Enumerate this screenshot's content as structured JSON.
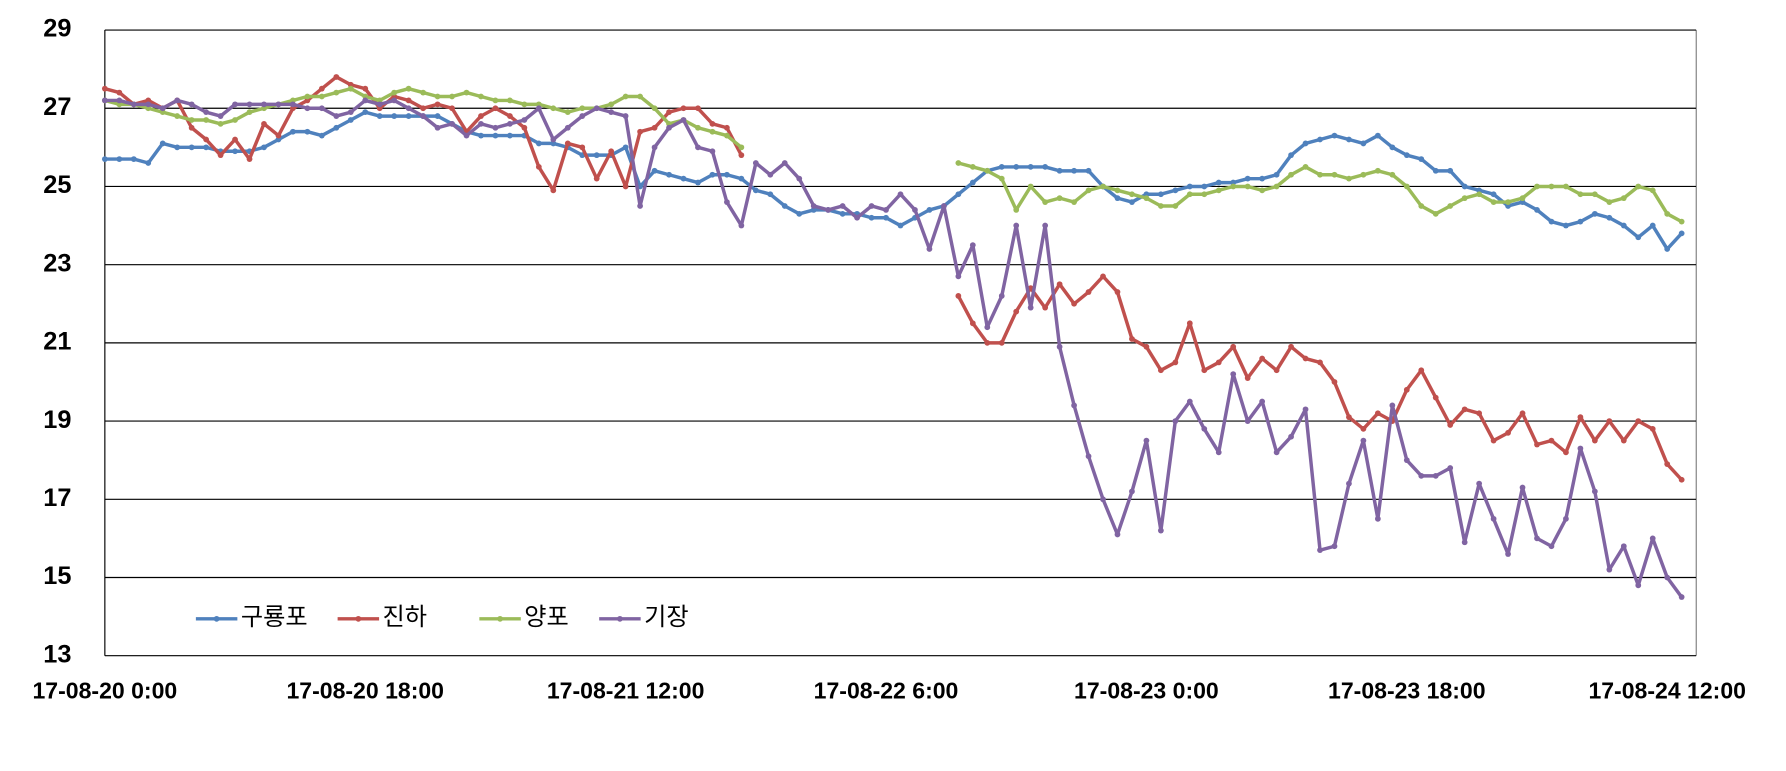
{
  "chart_data": {
    "type": "line",
    "categories": [
      "17-08-20 0:00",
      null,
      null,
      null,
      null,
      null,
      null,
      null,
      null,
      null,
      null,
      null,
      null,
      null,
      null,
      null,
      null,
      null,
      "17-08-20 18:00",
      null,
      null,
      null,
      null,
      null,
      null,
      null,
      null,
      null,
      null,
      null,
      null,
      null,
      null,
      null,
      null,
      null,
      "17-08-21 12:00",
      null,
      null,
      null,
      null,
      null,
      null,
      null,
      null,
      null,
      null,
      null,
      null,
      null,
      null,
      null,
      null,
      null,
      "17-08-22 6:00",
      null,
      null,
      null,
      null,
      null,
      null,
      null,
      null,
      null,
      null,
      null,
      null,
      null,
      null,
      null,
      null,
      null,
      "17-08-23 0:00",
      null,
      null,
      null,
      null,
      null,
      null,
      null,
      null,
      null,
      null,
      null,
      null,
      null,
      null,
      null,
      null,
      null,
      "17-08-23 18:00",
      null,
      null,
      null,
      null,
      null,
      null,
      null,
      null,
      null,
      null,
      null,
      null,
      null,
      null,
      null,
      null,
      null,
      "17-08-24 12:00",
      null
    ],
    "series": [
      {
        "name": "구룡포",
        "color": "#4f81bd",
        "values": [
          25.7,
          25.7,
          25.7,
          25.6,
          26.1,
          26.0,
          26.0,
          26.0,
          25.9,
          25.9,
          25.9,
          26.0,
          26.2,
          26.4,
          26.4,
          26.3,
          26.5,
          26.7,
          26.9,
          26.8,
          26.8,
          26.8,
          26.8,
          26.8,
          26.6,
          26.4,
          26.3,
          26.3,
          26.3,
          26.3,
          26.1,
          26.1,
          26.0,
          25.8,
          25.8,
          25.8,
          26.0,
          25.0,
          25.4,
          25.3,
          25.2,
          25.1,
          25.3,
          25.3,
          25.2,
          24.9,
          24.8,
          24.5,
          24.3,
          24.4,
          24.4,
          24.3,
          24.3,
          24.2,
          24.2,
          24.0,
          24.2,
          24.4,
          24.5,
          24.8,
          25.1,
          25.4,
          25.5,
          25.5,
          25.5,
          25.5,
          25.4,
          25.4,
          25.4,
          25.0,
          24.7,
          24.6,
          24.8,
          24.8,
          24.9,
          25.0,
          25.0,
          25.1,
          25.1,
          25.2,
          25.2,
          25.3,
          25.8,
          26.1,
          26.2,
          26.3,
          26.2,
          26.1,
          26.3,
          26.0,
          25.8,
          25.7,
          25.4,
          25.4,
          25.0,
          24.9,
          24.8,
          24.5,
          24.6,
          24.4,
          24.1,
          24.0,
          24.1,
          24.3,
          24.2,
          24.0,
          23.7,
          24.0,
          23.4,
          23.8
        ]
      },
      {
        "name": "진하",
        "color": "#c0504d",
        "values": [
          27.5,
          27.4,
          27.1,
          27.2,
          27.0,
          27.2,
          26.5,
          26.2,
          25.8,
          26.2,
          25.7,
          26.6,
          26.3,
          27.0,
          27.2,
          27.5,
          27.8,
          27.6,
          27.5,
          27.0,
          27.3,
          27.2,
          27.0,
          27.1,
          27.0,
          26.4,
          26.8,
          27.0,
          26.8,
          26.5,
          25.5,
          24.9,
          26.1,
          26.0,
          25.2,
          25.9,
          25.0,
          26.4,
          26.5,
          26.9,
          27.0,
          27.0,
          26.6,
          26.5,
          25.8,
          null,
          null,
          null,
          null,
          null,
          null,
          null,
          null,
          null,
          null,
          null,
          null,
          null,
          null,
          22.2,
          21.5,
          21.0,
          21.0,
          21.8,
          22.4,
          21.9,
          22.5,
          22.0,
          22.3,
          22.7,
          22.3,
          21.1,
          20.9,
          20.3,
          20.5,
          21.5,
          20.3,
          20.5,
          20.9,
          20.1,
          20.6,
          20.3,
          20.9,
          20.6,
          20.5,
          20.0,
          19.1,
          18.8,
          19.2,
          19.0,
          19.8,
          20.3,
          19.6,
          18.9,
          19.3,
          19.2,
          18.5,
          18.7,
          19.2,
          18.4,
          18.5,
          18.2,
          19.1,
          18.5,
          19.0,
          18.5,
          19.0,
          18.8,
          17.9,
          17.5
        ]
      },
      {
        "name": "양포",
        "color": "#9bbb59",
        "values": [
          27.2,
          27.1,
          27.1,
          27.0,
          26.9,
          26.8,
          26.7,
          26.7,
          26.6,
          26.7,
          26.9,
          27.0,
          27.1,
          27.2,
          27.3,
          27.3,
          27.4,
          27.5,
          27.3,
          27.2,
          27.4,
          27.5,
          27.4,
          27.3,
          27.3,
          27.4,
          27.3,
          27.2,
          27.2,
          27.1,
          27.1,
          27.0,
          26.9,
          27.0,
          27.0,
          27.1,
          27.3,
          27.3,
          27.0,
          26.6,
          26.7,
          26.5,
          26.4,
          26.3,
          26.0,
          null,
          null,
          null,
          null,
          null,
          null,
          null,
          null,
          null,
          null,
          null,
          null,
          null,
          null,
          25.6,
          25.5,
          25.4,
          25.2,
          24.4,
          25.0,
          24.6,
          24.7,
          24.6,
          24.9,
          25.0,
          24.9,
          24.8,
          24.7,
          24.5,
          24.5,
          24.8,
          24.8,
          24.9,
          25.0,
          25.0,
          24.9,
          25.0,
          25.3,
          25.5,
          25.3,
          25.3,
          25.2,
          25.3,
          25.4,
          25.3,
          25.0,
          24.5,
          24.3,
          24.5,
          24.7,
          24.8,
          24.6,
          24.6,
          24.7,
          25.0,
          25.0,
          25.0,
          24.8,
          24.8,
          24.6,
          24.7,
          25.0,
          24.9,
          24.3,
          24.1
        ]
      },
      {
        "name": "기장",
        "color": "#8064a2",
        "values": [
          27.2,
          27.2,
          27.1,
          27.1,
          27.0,
          27.2,
          27.1,
          26.9,
          26.8,
          27.1,
          27.1,
          27.1,
          27.1,
          27.1,
          27.0,
          27.0,
          26.8,
          26.9,
          27.2,
          27.1,
          27.2,
          27.0,
          26.8,
          26.5,
          26.6,
          26.3,
          26.6,
          26.5,
          26.6,
          26.7,
          27.0,
          26.2,
          26.5,
          26.8,
          27.0,
          26.9,
          26.8,
          24.5,
          26.0,
          26.5,
          26.7,
          26.0,
          25.9,
          24.6,
          24.0,
          25.6,
          25.3,
          25.6,
          25.2,
          24.5,
          24.4,
          24.5,
          24.2,
          24.5,
          24.4,
          24.8,
          24.4,
          23.4,
          24.5,
          22.7,
          23.5,
          21.4,
          22.2,
          24.0,
          21.9,
          24.0,
          20.9,
          19.4,
          18.1,
          17.0,
          16.1,
          17.2,
          18.5,
          16.2,
          19.0,
          19.5,
          18.8,
          18.2,
          20.2,
          19.0,
          19.5,
          18.2,
          18.6,
          19.3,
          15.7,
          15.8,
          17.4,
          18.5,
          16.5,
          19.4,
          18.0,
          17.6,
          17.6,
          17.8,
          15.9,
          17.4,
          16.5,
          15.6,
          17.3,
          16.0,
          15.8,
          16.5,
          18.3,
          17.2,
          15.2,
          15.8,
          14.8,
          16.0,
          15.0,
          14.5
        ]
      }
    ],
    "ylim": [
      13,
      29
    ],
    "yticks": [
      13,
      15,
      17,
      19,
      21,
      23,
      25,
      27,
      29
    ],
    "grid": true,
    "legend": "lower left"
  }
}
